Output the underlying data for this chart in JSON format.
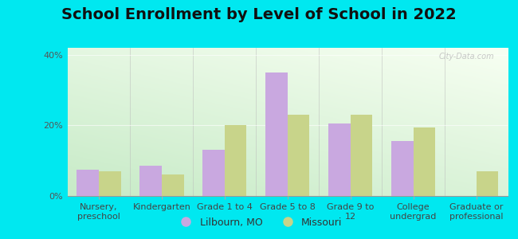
{
  "title": "School Enrollment by Level of School in 2022",
  "categories": [
    "Nursery,\npreschool",
    "Kindergarten",
    "Grade 1 to 4",
    "Grade 5 to 8",
    "Grade 9 to\n12",
    "College\nundergrad",
    "Graduate or\nprofessional"
  ],
  "lilbourn_values": [
    7.5,
    8.5,
    13.0,
    35.0,
    20.5,
    15.5,
    0.0
  ],
  "missouri_values": [
    7.0,
    6.0,
    20.0,
    23.0,
    23.0,
    19.5,
    7.0
  ],
  "lilbourn_color": "#c9a8e0",
  "missouri_color": "#c8d48a",
  "background_outer": "#00e8f0",
  "ylim": [
    0,
    42
  ],
  "yticks": [
    0,
    20,
    40
  ],
  "ytick_labels": [
    "0%",
    "20%",
    "40%"
  ],
  "watermark": "City-Data.com",
  "legend_label1": "Lilbourn, MO",
  "legend_label2": "Missouri",
  "title_fontsize": 14,
  "bar_width": 0.35,
  "tick_fontsize": 8,
  "legend_fontsize": 9
}
